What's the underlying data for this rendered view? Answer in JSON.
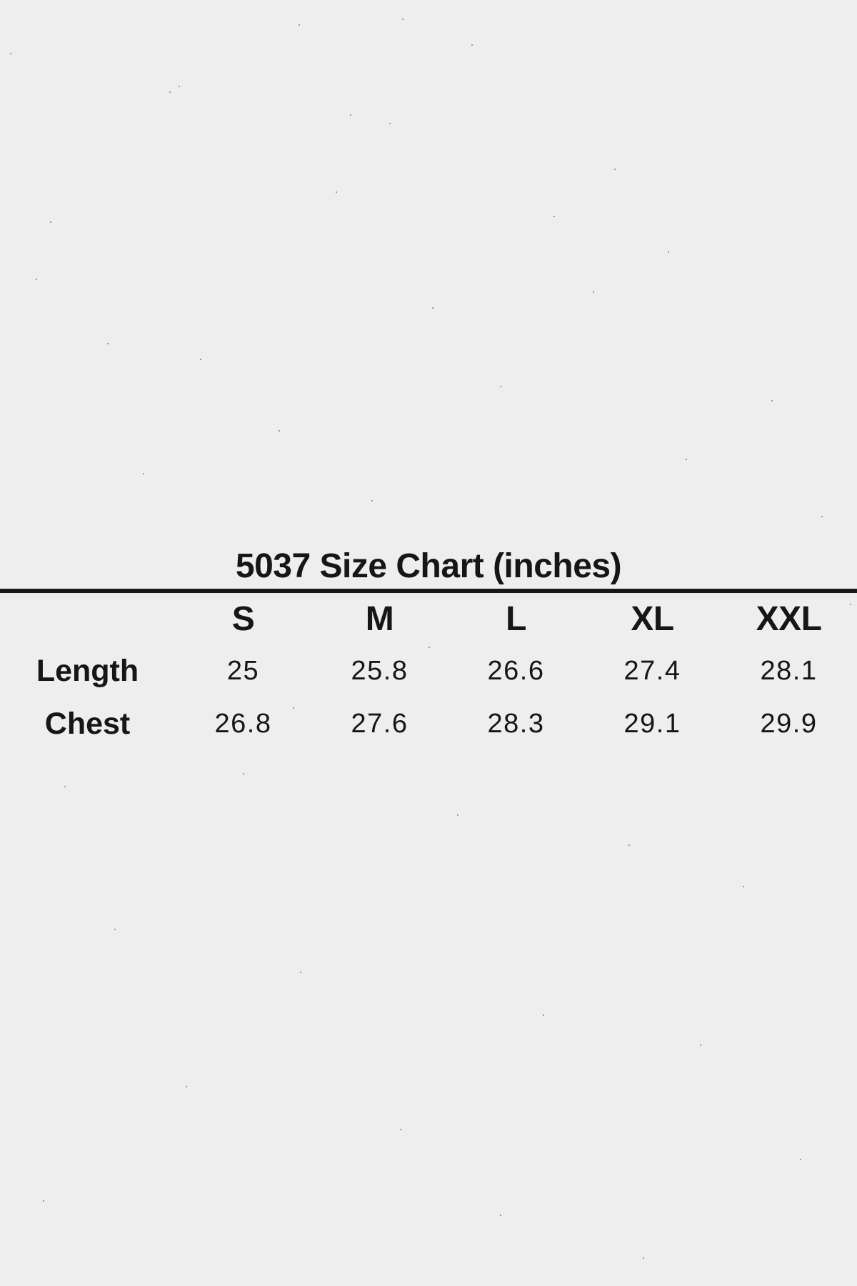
{
  "page": {
    "background_color": "#eeeeee",
    "text_color": "#161616",
    "rule_color": "#191919"
  },
  "size_chart": {
    "title": "5037 Size Chart (inches)",
    "columns": [
      "S",
      "M",
      "L",
      "XL",
      "XXL"
    ],
    "rows": [
      {
        "label": "Length",
        "values": [
          "25",
          "25.8",
          "26.6",
          "27.4",
          "28.1"
        ]
      },
      {
        "label": "Chest",
        "values": [
          "26.8",
          "27.6",
          "28.3",
          "29.1",
          "29.9"
        ]
      }
    ]
  },
  "chart_data": {
    "type": "table",
    "title": "5037 Size Chart (inches)",
    "units": "inches",
    "columns": [
      "S",
      "M",
      "L",
      "XL",
      "XXL"
    ],
    "rows": [
      {
        "label": "Length",
        "values": [
          25,
          25.8,
          26.6,
          27.4,
          28.1
        ]
      },
      {
        "label": "Chest",
        "values": [
          26.8,
          27.6,
          28.3,
          29.1,
          29.9
        ]
      }
    ]
  }
}
